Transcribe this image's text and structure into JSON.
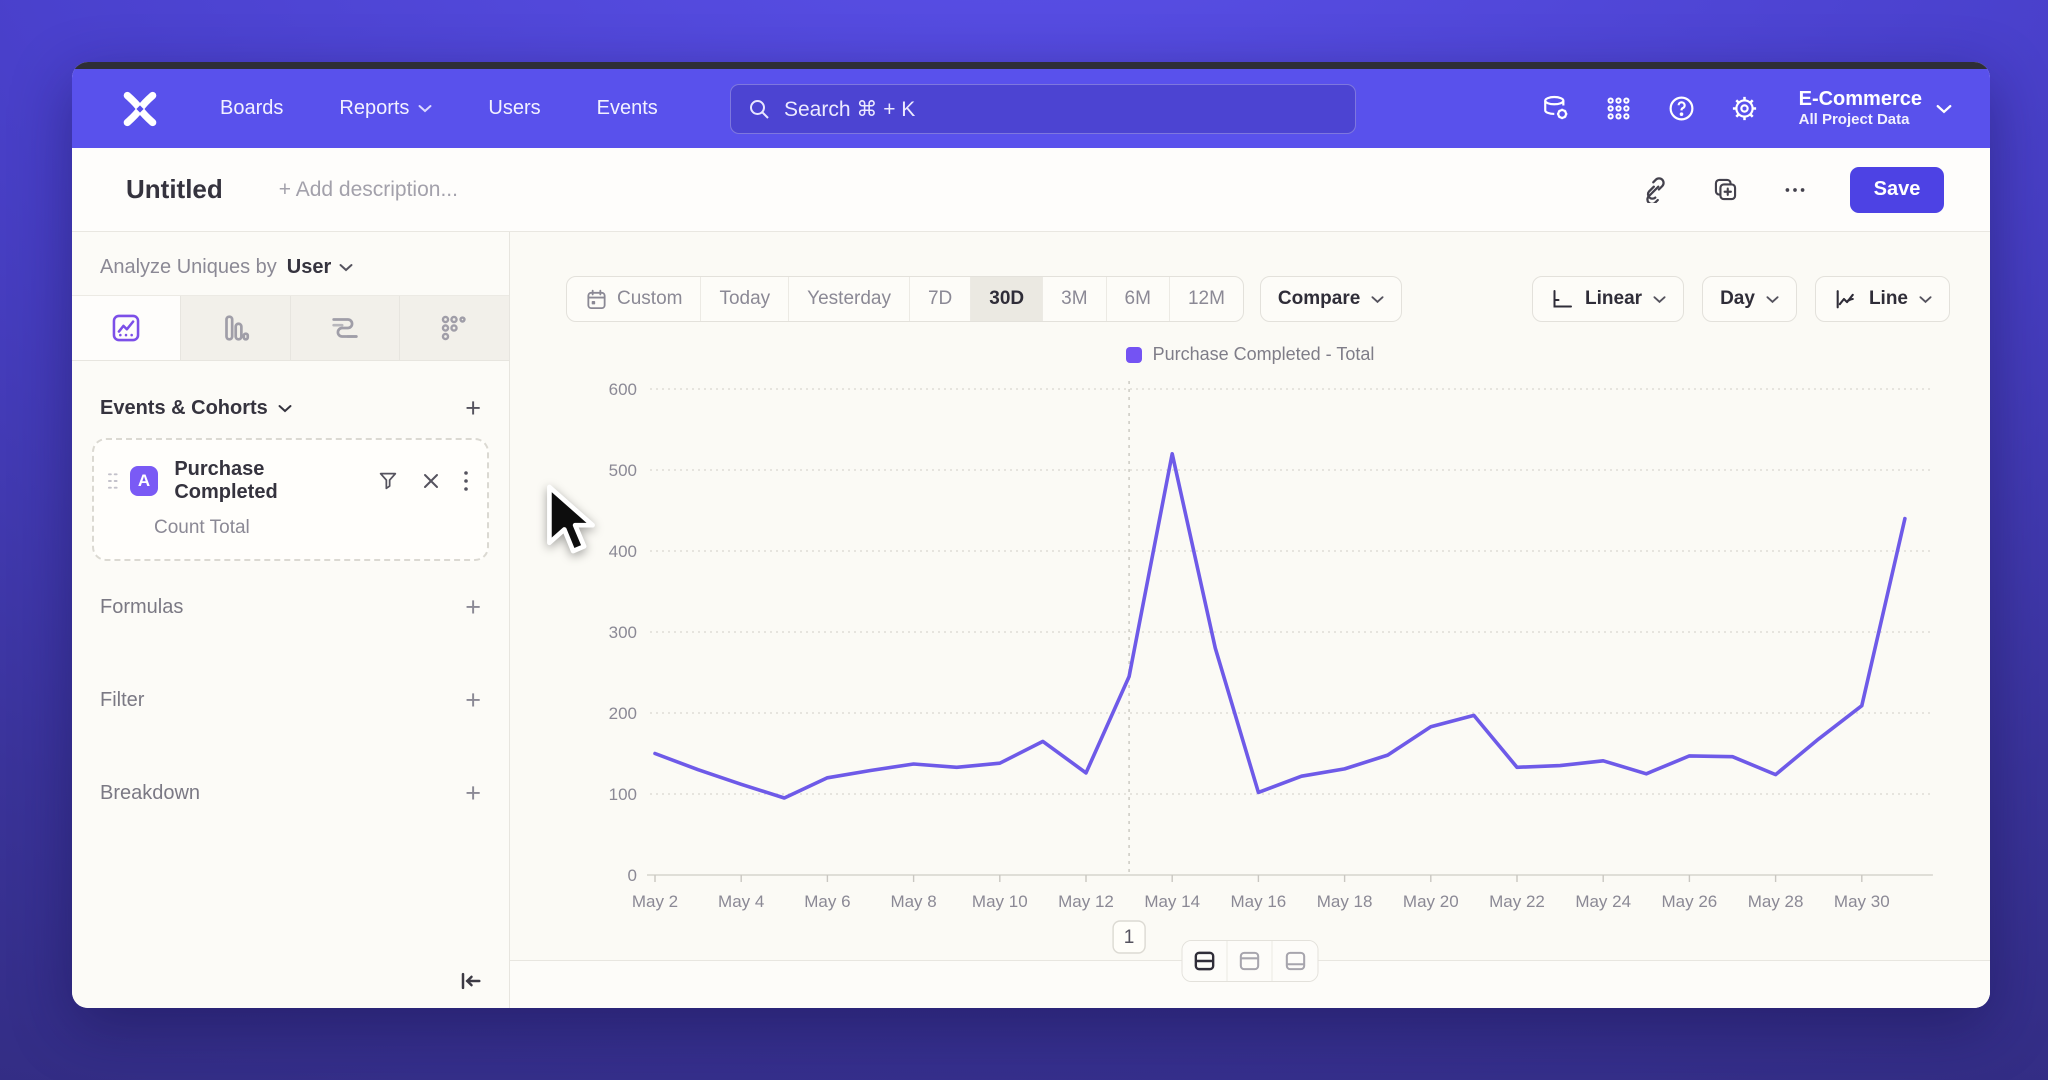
{
  "nav": {
    "logo": "mixpanel-logo",
    "items": [
      {
        "label": "Boards",
        "has_dropdown": false
      },
      {
        "label": "Reports",
        "has_dropdown": true
      },
      {
        "label": "Users",
        "has_dropdown": false
      },
      {
        "label": "Events",
        "has_dropdown": false
      }
    ],
    "search": {
      "placeholder": "Search  ⌘ + K"
    },
    "project": {
      "name": "E-Commerce",
      "scope": "All Project Data"
    }
  },
  "title_bar": {
    "title": "Untitled",
    "description_placeholder": "+ Add description...",
    "save_label": "Save"
  },
  "sidebar": {
    "analyze": {
      "prefix": "Analyze Uniques by",
      "value": "User"
    },
    "tabs": [
      "insights-line-tab",
      "bar-chart-tab",
      "flow-tab",
      "retention-tab"
    ],
    "active_tab": "insights-line-tab",
    "events_header": "Events & Cohorts",
    "event_card": {
      "badge": "A",
      "name": "Purchase Completed",
      "metric": "Count Total"
    },
    "sections": [
      "Formulas",
      "Filter",
      "Breakdown"
    ]
  },
  "toolbar": {
    "ranges": [
      "Custom",
      "Today",
      "Yesterday",
      "7D",
      "30D",
      "3M",
      "6M",
      "12M"
    ],
    "active_range": "30D",
    "compare_label": "Compare",
    "scale_label": "Linear",
    "interval_label": "Day",
    "chart_type_label": "Line"
  },
  "chart_data": {
    "type": "line",
    "legend": [
      "Purchase Completed - Total"
    ],
    "legend_position": "top-center",
    "x": [
      "May 2",
      "May 3",
      "May 4",
      "May 5",
      "May 6",
      "May 7",
      "May 8",
      "May 9",
      "May 10",
      "May 11",
      "May 12",
      "May 13",
      "May 14",
      "May 15",
      "May 16",
      "May 17",
      "May 18",
      "May 19",
      "May 20",
      "May 21",
      "May 22",
      "May 23",
      "May 24",
      "May 25",
      "May 26",
      "May 27",
      "May 28",
      "May 29",
      "May 30",
      "May 31"
    ],
    "xticks_shown": [
      "May 2",
      "May 4",
      "May 6",
      "May 8",
      "May 10",
      "May 12",
      "May 14",
      "May 16",
      "May 18",
      "May 20",
      "May 22",
      "May 24",
      "May 26",
      "May 28",
      "May 30"
    ],
    "series": [
      {
        "name": "Purchase Completed - Total",
        "color": "#6e5ae8",
        "values": [
          150,
          130,
          112,
          95,
          120,
          129,
          137,
          133,
          138,
          165,
          126,
          245,
          520,
          280,
          102,
          122,
          131,
          148,
          183,
          197,
          133,
          135,
          141,
          125,
          147,
          146,
          124,
          168,
          209,
          440
        ]
      }
    ],
    "ylim": [
      0,
      600
    ],
    "yticks": [
      0,
      100,
      200,
      300,
      400,
      500,
      600
    ],
    "grid": "horizontal-dotted",
    "annotations": [
      {
        "x": "May 13",
        "x_index": 11,
        "label": "1"
      }
    ]
  },
  "footer": {
    "layout_options": [
      "split-view",
      "top-panel",
      "bottom-panel"
    ],
    "active_layout": "split-view"
  },
  "colors": {
    "nav_bg": "#5951ec",
    "accent": "#4d42e4",
    "line": "#6e5ae8",
    "legend_swatch": "#7453f3",
    "event_badge": "#7a5af5",
    "grid": "#dddbd4",
    "axis_text": "#8b8995"
  }
}
